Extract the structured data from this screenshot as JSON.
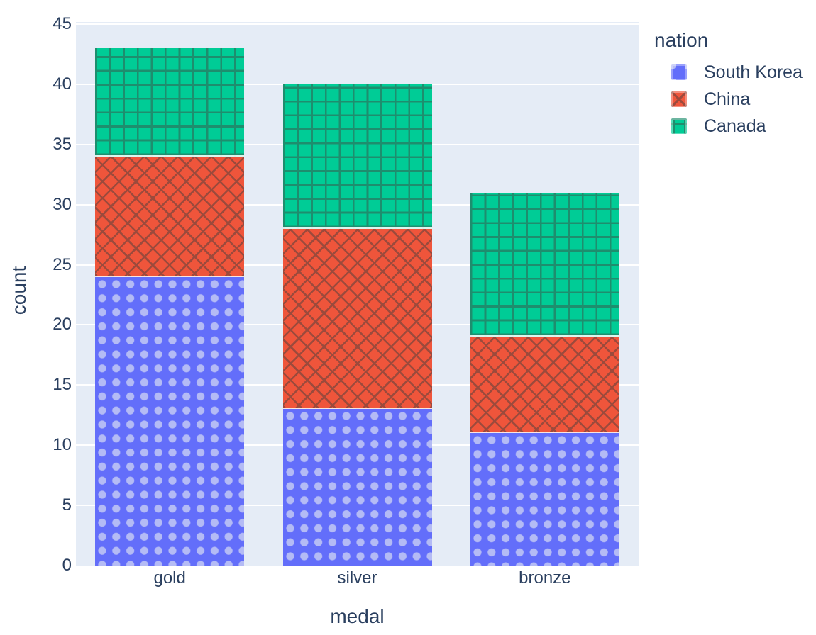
{
  "figure": {
    "background_color": "#ffffff",
    "plot_background_color": "#e5ecf6",
    "grid_color": "#ffffff",
    "text_color": "#2a3f5f"
  },
  "chart_data": {
    "type": "bar",
    "barmode": "stack",
    "title": "",
    "xlabel": "medal",
    "ylabel": "count",
    "categories": [
      "gold",
      "silver",
      "bronze"
    ],
    "series": [
      {
        "name": "South Korea",
        "values": [
          24,
          13,
          11
        ],
        "color": "#636efa",
        "pattern": "dots",
        "pattern_color": "#b4bbf5"
      },
      {
        "name": "China",
        "values": [
          10,
          15,
          8
        ],
        "color": "#ef553b",
        "pattern": "diagonal-crosshatch",
        "pattern_color": "#9c4a3c"
      },
      {
        "name": "Canada",
        "values": [
          9,
          12,
          12
        ],
        "color": "#00cc96",
        "pattern": "grid",
        "pattern_color": "#1e8e6e"
      }
    ],
    "stack_totals": [
      43,
      40,
      31
    ],
    "ylim": [
      0,
      45
    ],
    "yticks": [
      "0",
      "5",
      "10",
      "15",
      "20",
      "25",
      "30",
      "35",
      "40",
      "45"
    ],
    "grid": true,
    "legend_title": "nation",
    "legend_position": "top-right"
  }
}
